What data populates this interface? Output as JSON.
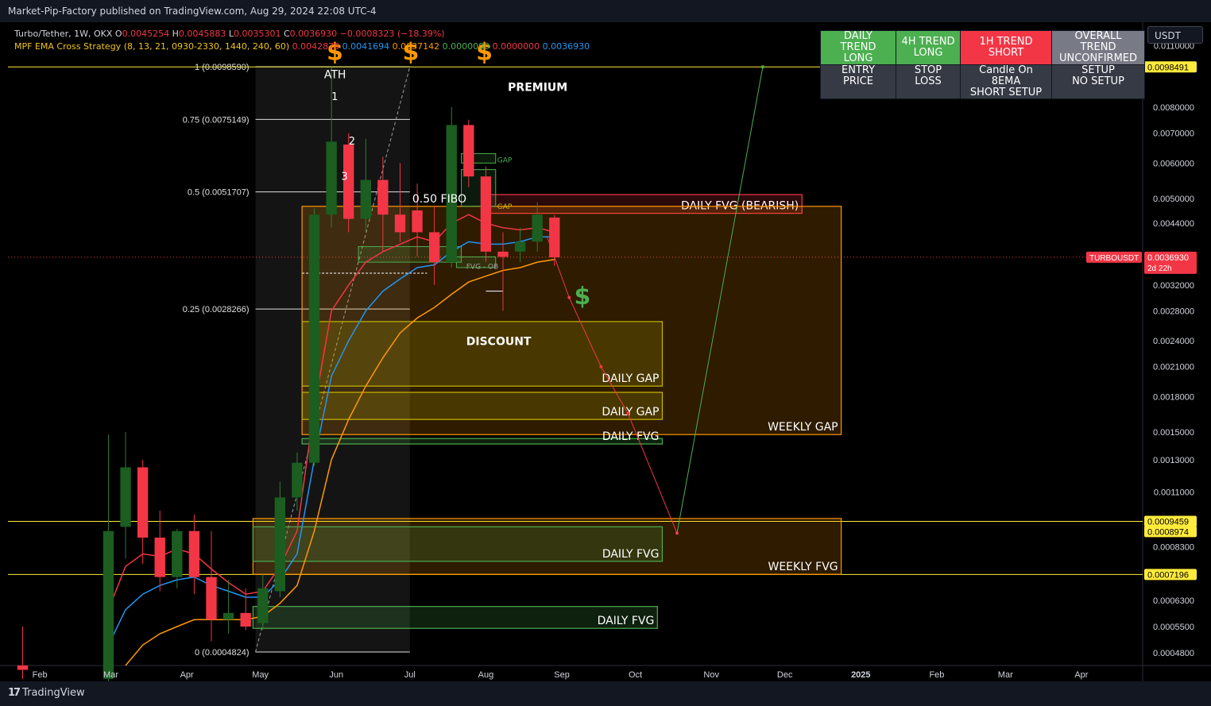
{
  "header": {
    "published": "Market-Pip-Factory published on TradingView.com, Aug 29, 2024 22:08 UTC-4"
  },
  "footer": {
    "brand": "TradingView"
  },
  "legend": {
    "line1": [
      {
        "t": "Turbo/Tether, 1W, OKX ",
        "c": "#d1d4dc"
      },
      {
        "t": "O",
        "c": "#d1d4dc"
      },
      {
        "t": "0.0045254 ",
        "c": "#f23645"
      },
      {
        "t": "H",
        "c": "#d1d4dc"
      },
      {
        "t": "0.0045883 ",
        "c": "#f23645"
      },
      {
        "t": "L",
        "c": "#d1d4dc"
      },
      {
        "t": "0.0035301 ",
        "c": "#f23645"
      },
      {
        "t": "C",
        "c": "#d1d4dc"
      },
      {
        "t": "0.0036930 ",
        "c": "#f23645"
      },
      {
        "t": "−0.0008323 (−18.39%)",
        "c": "#f23645"
      }
    ],
    "line2": [
      {
        "t": "MPF EMA Cross Strategy (8, 13, 21, 0930-2330, 1440, 240, 60) ",
        "c": "#f0c419"
      },
      {
        "t": "0.0042878 ",
        "c": "#f23645"
      },
      {
        "t": "0.0041694 ",
        "c": "#2196f3"
      },
      {
        "t": "0.0037142 ",
        "c": "#ff9800"
      },
      {
        "t": "0.0000000 ",
        "c": "#4caf50"
      },
      {
        "t": "0.0000000 ",
        "c": "#f23645"
      },
      {
        "t": "0.0036930",
        "c": "#2196f3"
      }
    ]
  },
  "currency_selector": "USDT",
  "dashboard": {
    "row1": [
      {
        "text": [
          "DAILY TREND",
          "LONG"
        ],
        "bg": "#4caf50"
      },
      {
        "text": [
          "4H TREND",
          "LONG"
        ],
        "bg": "#4caf50"
      },
      {
        "text": [
          "1H TREND",
          "SHORT"
        ],
        "bg": "#f23645"
      },
      {
        "text": [
          "OVERALL TREND",
          "UNCONFIRMED"
        ],
        "bg": "#787b86"
      }
    ],
    "row2": [
      {
        "text": [
          "ENTRY PRICE"
        ]
      },
      {
        "text": [
          "STOP LOSS"
        ]
      },
      {
        "text": [
          "Candle On 8EMA",
          "SHORT SETUP"
        ]
      },
      {
        "text": [
          "SETUP",
          "NO SETUP"
        ]
      }
    ]
  },
  "chart_data": {
    "type": "candlestick",
    "symbol": "TURBOUSDT",
    "timeframe": "1W",
    "y_scale": "log",
    "ylim": [
      0.00045,
      0.0124
    ],
    "x_axis": {
      "ticks": [
        {
          "label": "Feb",
          "date": "2024-02-01"
        },
        {
          "label": "Mar",
          "date": "2024-03-01"
        },
        {
          "label": "Apr",
          "date": "2024-04-01"
        },
        {
          "label": "May",
          "date": "2024-05-01"
        },
        {
          "label": "Jun",
          "date": "2024-06-01"
        },
        {
          "label": "Jul",
          "date": "2024-07-01"
        },
        {
          "label": "Aug",
          "date": "2024-08-01"
        },
        {
          "label": "Sep",
          "date": "2024-09-01"
        },
        {
          "label": "Oct",
          "date": "2024-10-01"
        },
        {
          "label": "Nov",
          "date": "2024-11-01"
        },
        {
          "label": "Dec",
          "date": "2024-12-01"
        },
        {
          "label": "2025",
          "date": "2025-01-01"
        },
        {
          "label": "Feb",
          "date": "2025-02-01"
        },
        {
          "label": "Mar",
          "date": "2025-03-01"
        },
        {
          "label": "Apr",
          "date": "2025-04-01"
        }
      ],
      "xlim": [
        "2024-01-19",
        "2025-04-26"
      ]
    },
    "y_ticks": [
      "0.0110000",
      "0.0080000",
      "0.0070000",
      "0.0060000",
      "0.0050000",
      "0.0044000",
      "0.0032000",
      "0.0028000",
      "0.0024000",
      "0.0021000",
      "0.0018000",
      "0.0015000",
      "0.0013000",
      "0.0011000",
      "0.0008300",
      "0.0006300",
      "0.0005500",
      "0.0004800"
    ],
    "price_labels": [
      {
        "value": 0.0098491,
        "text": "0.0098491",
        "bg": "#ffeb3b",
        "fg": "#000"
      },
      {
        "value": 0.0009459,
        "text": "0.0009459",
        "bg": "#ffeb3b",
        "fg": "#000"
      },
      {
        "value": 0.0008974,
        "text": "0.0008974",
        "bg": "#ffeb3b",
        "fg": "#000"
      },
      {
        "value": 0.0007196,
        "text": "0.0007196",
        "bg": "#ffeb3b",
        "fg": "#000"
      }
    ],
    "last_price": {
      "value": 0.003693,
      "text": "0.0036930",
      "countdown": "2d 22h",
      "symbol": "TURBOUSDT"
    },
    "candles": [
      {
        "t": "2024-01-22",
        "o": 0.00045,
        "h": 0.00055,
        "l": 0.00042,
        "c": 0.00044
      },
      {
        "t": "2024-02-26",
        "o": 0.00042,
        "h": 0.00148,
        "l": 0.0004,
        "c": 0.0009
      },
      {
        "t": "2024-03-04",
        "o": 0.00092,
        "h": 0.0015,
        "l": 0.00078,
        "c": 0.00125
      },
      {
        "t": "2024-03-11",
        "o": 0.00125,
        "h": 0.0013,
        "l": 0.00076,
        "c": 0.00087
      },
      {
        "t": "2024-03-18",
        "o": 0.00087,
        "h": 0.001,
        "l": 0.00066,
        "c": 0.00071
      },
      {
        "t": "2024-03-25",
        "o": 0.00071,
        "h": 0.00091,
        "l": 0.00067,
        "c": 0.0009
      },
      {
        "t": "2024-04-01",
        "o": 0.0009,
        "h": 0.00098,
        "l": 0.00065,
        "c": 0.00071
      },
      {
        "t": "2024-04-08",
        "o": 0.00071,
        "h": 0.0009,
        "l": 0.00051,
        "c": 0.00057
      },
      {
        "t": "2024-04-15",
        "o": 0.00057,
        "h": 0.0007,
        "l": 0.00053,
        "c": 0.00059
      },
      {
        "t": "2024-04-22",
        "o": 0.00059,
        "h": 0.00067,
        "l": 0.00054,
        "c": 0.00055
      },
      {
        "t": "2024-04-29",
        "o": 0.00056,
        "h": 0.00072,
        "l": 0.00054,
        "c": 0.00067
      },
      {
        "t": "2024-05-06",
        "o": 0.00066,
        "h": 0.00116,
        "l": 0.00064,
        "c": 0.00107
      },
      {
        "t": "2024-05-13",
        "o": 0.00107,
        "h": 0.00135,
        "l": 0.001,
        "c": 0.00128
      },
      {
        "t": "2024-05-20",
        "o": 0.00128,
        "h": 0.00475,
        "l": 0.00126,
        "c": 0.0046
      },
      {
        "t": "2024-05-27",
        "o": 0.0046,
        "h": 0.00985,
        "l": 0.0043,
        "c": 0.0067
      },
      {
        "t": "2024-06-03",
        "o": 0.0066,
        "h": 0.007,
        "l": 0.0042,
        "c": 0.0045
      },
      {
        "t": "2024-06-10",
        "o": 0.0045,
        "h": 0.0068,
        "l": 0.0042,
        "c": 0.0055
      },
      {
        "t": "2024-06-17",
        "o": 0.0055,
        "h": 0.0062,
        "l": 0.0038,
        "c": 0.0046
      },
      {
        "t": "2024-06-24",
        "o": 0.0046,
        "h": 0.006,
        "l": 0.004,
        "c": 0.0042
      },
      {
        "t": "2024-07-01",
        "o": 0.0047,
        "h": 0.0054,
        "l": 0.0037,
        "c": 0.0042
      },
      {
        "t": "2024-07-08",
        "o": 0.0042,
        "h": 0.0048,
        "l": 0.0032,
        "c": 0.0036
      },
      {
        "t": "2024-07-15",
        "o": 0.0036,
        "h": 0.008,
        "l": 0.0035,
        "c": 0.0073
      },
      {
        "t": "2024-07-22",
        "o": 0.0073,
        "h": 0.0075,
        "l": 0.0053,
        "c": 0.0056
      },
      {
        "t": "2024-07-29",
        "o": 0.0056,
        "h": 0.0059,
        "l": 0.0036,
        "c": 0.0038
      },
      {
        "t": "2024-08-05",
        "o": 0.0038,
        "h": 0.0042,
        "l": 0.0028,
        "c": 0.0037
      },
      {
        "t": "2024-08-12",
        "o": 0.0038,
        "h": 0.0043,
        "l": 0.0036,
        "c": 0.004
      },
      {
        "t": "2024-08-19",
        "o": 0.004,
        "h": 0.0049,
        "l": 0.0038,
        "c": 0.0046
      },
      {
        "t": "2024-08-26",
        "o": 0.00453,
        "h": 0.00459,
        "l": 0.00353,
        "c": 0.00369
      }
    ],
    "series": [
      {
        "name": "EMA 8",
        "color": "#f23645",
        "values": [
          null,
          0.0006,
          0.00075,
          0.0008,
          0.00079,
          0.00082,
          0.0008,
          0.00074,
          0.00069,
          0.00065,
          0.00066,
          0.00075,
          0.0009,
          0.0017,
          0.0028,
          0.0032,
          0.0036,
          0.0038,
          0.00395,
          0.0041,
          0.004,
          0.0044,
          0.0046,
          0.0044,
          0.0043,
          0.00425,
          0.0043,
          0.0042
        ]
      },
      {
        "name": "EMA 13",
        "color": "#2196f3",
        "values": [
          null,
          0.0005,
          0.0006,
          0.00065,
          0.00068,
          0.0007,
          0.00071,
          0.00068,
          0.00066,
          0.00064,
          0.00064,
          0.0007,
          0.0008,
          0.0013,
          0.002,
          0.0024,
          0.0028,
          0.0031,
          0.0033,
          0.0035,
          0.00355,
          0.0038,
          0.004,
          0.00395,
          0.00395,
          0.004,
          0.0041,
          0.0041
        ]
      },
      {
        "name": "EMA 21",
        "color": "#ff9800",
        "values": [
          null,
          null,
          0.00045,
          0.0005,
          0.00053,
          0.00055,
          0.00057,
          0.00057,
          0.00057,
          0.00057,
          0.00058,
          0.00062,
          0.00068,
          0.0009,
          0.0013,
          0.0016,
          0.0019,
          0.0022,
          0.0025,
          0.0027,
          0.00285,
          0.00305,
          0.00325,
          0.00335,
          0.00345,
          0.0035,
          0.0036,
          0.00365
        ]
      }
    ],
    "fib_levels": [
      {
        "ratio": "1",
        "label": "1 (0.0098590)",
        "value": 0.009859
      },
      {
        "ratio": "0.75",
        "label": "0.75 (0.0075149)",
        "value": 0.0075149
      },
      {
        "ratio": "0.5",
        "label": "0.5 (0.0051707)",
        "value": 0.0051707
      },
      {
        "ratio": "0.25",
        "label": "0.25 (0.0028266)",
        "value": 0.0028266
      },
      {
        "ratio": "0",
        "label": "0 (0.0004824)",
        "value": 0.0004824
      }
    ],
    "zones": [
      {
        "name": "DAILY FVG (BEARISH)",
        "from": "2024-08-01",
        "to": "2024-12-08",
        "top": 0.0051,
        "bottom": 0.00463,
        "color": "#f23645"
      },
      {
        "name": "WEEKLY GAP",
        "from": "2024-05-18",
        "to": "2024-12-24",
        "top": 0.0048,
        "bottom": 0.00148,
        "color": "#ff9800"
      },
      {
        "name": "DAILY GAP",
        "from": "2024-05-18",
        "to": "2024-10-12",
        "top": 0.00265,
        "bottom": 0.0019,
        "color": "#c8b800"
      },
      {
        "name": "DAILY GAP",
        "from": "2024-05-18",
        "to": "2024-10-12",
        "top": 0.00184,
        "bottom": 0.0016,
        "color": "#c8b800"
      },
      {
        "name": "DAILY FVG",
        "from": "2024-05-18",
        "to": "2024-10-12",
        "top": 0.00145,
        "bottom": 0.00141,
        "color": "#4caf50"
      },
      {
        "name": "WEEKLY FVG",
        "from": "2024-04-28",
        "to": "2024-12-24",
        "top": 0.00096,
        "bottom": 0.00072,
        "color": "#ff9800"
      },
      {
        "name": "DAILY FVG",
        "from": "2024-04-28",
        "to": "2024-10-12",
        "top": 0.00092,
        "bottom": 0.00077,
        "color": "#4caf50"
      },
      {
        "name": "DAILY FVG",
        "from": "2024-04-28",
        "to": "2024-10-10",
        "top": 0.00061,
        "bottom": 0.000545,
        "color": "#4caf50"
      }
    ],
    "annotations": {
      "ath": "ATH",
      "premium": "PREMIUM",
      "discount": "DISCOUNT",
      "fibo": "0.50 FIBO",
      "gap_small": "GAP",
      "fvg_ob": "FVG - OB",
      "waves": [
        "1",
        "2",
        "3"
      ],
      "dollar": "$"
    },
    "projection": [
      {
        "date": "2024-08-26",
        "value": 0.0041
      },
      {
        "date": "2024-09-04",
        "value": 0.003
      },
      {
        "date": "2024-09-17",
        "value": 0.0021
      },
      {
        "date": "2024-09-28",
        "value": 0.00165
      },
      {
        "date": "2024-10-18",
        "value": 0.00089
      },
      {
        "date": "2024-11-22",
        "value": 0.0098491
      }
    ]
  }
}
